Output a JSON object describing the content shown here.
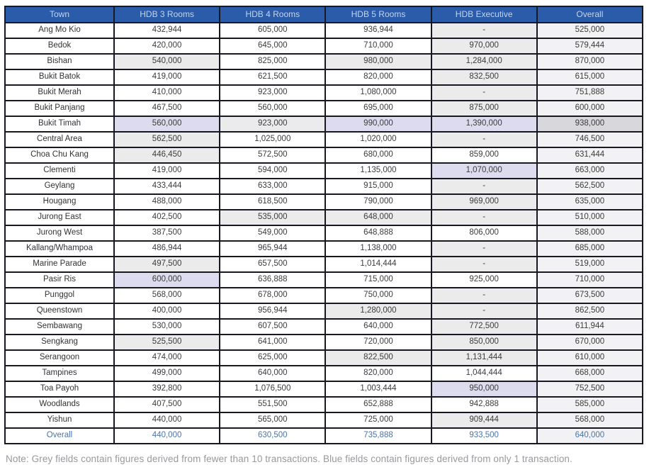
{
  "page": {
    "note": "Note: Grey fields contain figures derived from fewer than 10 transactions. Blue fields contain figures derived from only 1 transaction."
  },
  "colors": {
    "header_bg": "#2b5ca9",
    "header_text": "#c2d4ec",
    "grid_border": "#181821",
    "grey_field": "#ebebeb",
    "blue_field": "#dcdcee",
    "overall_column_tint": "#f2f2f4",
    "dark_grey_field": "#d8d8dc",
    "footer_text_blue": "#4a74a8",
    "note_text": "#97999d"
  },
  "style_legend": {
    "w": "white - 10 or more transactions",
    "g": "grey field - fewer than 10 transactions",
    "b": "blue field - only 1 transaction",
    "o": "overall column light tint",
    "og": "darker grey field in overall column"
  },
  "table": {
    "columns": [
      "Town",
      "HDB 3 Rooms",
      "HDB 4 Rooms",
      "HDB 5 Rooms",
      "HDB Executive",
      "Overall"
    ],
    "rows": [
      {
        "town": "Ang Mo Kio",
        "cells": [
          {
            "v": "432,944",
            "s": "w"
          },
          {
            "v": "605,000",
            "s": "w"
          },
          {
            "v": "936,944",
            "s": "w"
          },
          {
            "v": "-",
            "s": "g"
          },
          {
            "v": "525,000",
            "s": "o"
          }
        ]
      },
      {
        "town": "Bedok",
        "cells": [
          {
            "v": "420,000",
            "s": "w"
          },
          {
            "v": "645,000",
            "s": "w"
          },
          {
            "v": "710,000",
            "s": "w"
          },
          {
            "v": "970,000",
            "s": "g"
          },
          {
            "v": "579,444",
            "s": "o"
          }
        ]
      },
      {
        "town": "Bishan",
        "cells": [
          {
            "v": "540,000",
            "s": "g"
          },
          {
            "v": "825,000",
            "s": "w"
          },
          {
            "v": "980,000",
            "s": "g"
          },
          {
            "v": "1,284,000",
            "s": "g"
          },
          {
            "v": "870,000",
            "s": "o"
          }
        ]
      },
      {
        "town": "Bukit Batok",
        "cells": [
          {
            "v": "419,000",
            "s": "w"
          },
          {
            "v": "621,500",
            "s": "w"
          },
          {
            "v": "820,000",
            "s": "w"
          },
          {
            "v": "832,500",
            "s": "g"
          },
          {
            "v": "615,000",
            "s": "o"
          }
        ]
      },
      {
        "town": "Bukit Merah",
        "cells": [
          {
            "v": "410,000",
            "s": "w"
          },
          {
            "v": "923,000",
            "s": "w"
          },
          {
            "v": "1,080,000",
            "s": "w"
          },
          {
            "v": "-",
            "s": "g"
          },
          {
            "v": "751,888",
            "s": "o"
          }
        ]
      },
      {
        "town": "Bukit Panjang",
        "cells": [
          {
            "v": "467,500",
            "s": "w"
          },
          {
            "v": "560,000",
            "s": "w"
          },
          {
            "v": "695,000",
            "s": "w"
          },
          {
            "v": "875,000",
            "s": "g"
          },
          {
            "v": "600,000",
            "s": "o"
          }
        ]
      },
      {
        "town": "Bukit Timah",
        "cells": [
          {
            "v": "560,000",
            "s": "b"
          },
          {
            "v": "923,000",
            "s": "g"
          },
          {
            "v": "990,000",
            "s": "b"
          },
          {
            "v": "1,390,000",
            "s": "b"
          },
          {
            "v": "938,000",
            "s": "og"
          }
        ]
      },
      {
        "town": "Central Area",
        "cells": [
          {
            "v": "562,500",
            "s": "g"
          },
          {
            "v": "1,025,000",
            "s": "w"
          },
          {
            "v": "1,020,000",
            "s": "w"
          },
          {
            "v": "-",
            "s": "g"
          },
          {
            "v": "746,500",
            "s": "o"
          }
        ]
      },
      {
        "town": "Choa Chu Kang",
        "cells": [
          {
            "v": "446,450",
            "s": "g"
          },
          {
            "v": "572,500",
            "s": "w"
          },
          {
            "v": "680,000",
            "s": "w"
          },
          {
            "v": "859,000",
            "s": "w"
          },
          {
            "v": "631,444",
            "s": "o"
          }
        ]
      },
      {
        "town": "Clementi",
        "cells": [
          {
            "v": "419,000",
            "s": "w"
          },
          {
            "v": "594,000",
            "s": "w"
          },
          {
            "v": "1,135,000",
            "s": "w"
          },
          {
            "v": "1,070,000",
            "s": "b"
          },
          {
            "v": "663,000",
            "s": "o"
          }
        ]
      },
      {
        "town": "Geylang",
        "cells": [
          {
            "v": "433,444",
            "s": "w"
          },
          {
            "v": "633,000",
            "s": "w"
          },
          {
            "v": "915,000",
            "s": "w"
          },
          {
            "v": "-",
            "s": "g"
          },
          {
            "v": "562,500",
            "s": "o"
          }
        ]
      },
      {
        "town": "Hougang",
        "cells": [
          {
            "v": "488,000",
            "s": "w"
          },
          {
            "v": "618,500",
            "s": "w"
          },
          {
            "v": "790,000",
            "s": "w"
          },
          {
            "v": "969,000",
            "s": "g"
          },
          {
            "v": "635,000",
            "s": "o"
          }
        ]
      },
      {
        "town": "Jurong East",
        "cells": [
          {
            "v": "402,500",
            "s": "w"
          },
          {
            "v": "535,000",
            "s": "g"
          },
          {
            "v": "648,000",
            "s": "g"
          },
          {
            "v": "-",
            "s": "g"
          },
          {
            "v": "510,000",
            "s": "o"
          }
        ]
      },
      {
        "town": "Jurong West",
        "cells": [
          {
            "v": "387,500",
            "s": "w"
          },
          {
            "v": "549,000",
            "s": "w"
          },
          {
            "v": "648,888",
            "s": "w"
          },
          {
            "v": "806,000",
            "s": "w"
          },
          {
            "v": "588,000",
            "s": "o"
          }
        ]
      },
      {
        "town": "Kallang/Whampoa",
        "cells": [
          {
            "v": "486,944",
            "s": "w"
          },
          {
            "v": "965,944",
            "s": "w"
          },
          {
            "v": "1,138,000",
            "s": "w"
          },
          {
            "v": "-",
            "s": "g"
          },
          {
            "v": "685,000",
            "s": "o"
          }
        ]
      },
      {
        "town": "Marine Parade",
        "cells": [
          {
            "v": "497,500",
            "s": "g"
          },
          {
            "v": "657,500",
            "s": "w"
          },
          {
            "v": "1,014,444",
            "s": "w"
          },
          {
            "v": "-",
            "s": "g"
          },
          {
            "v": "519,000",
            "s": "o"
          }
        ]
      },
      {
        "town": "Pasir Ris",
        "cells": [
          {
            "v": "600,000",
            "s": "b"
          },
          {
            "v": "636,888",
            "s": "w"
          },
          {
            "v": "715,000",
            "s": "w"
          },
          {
            "v": "925,000",
            "s": "w"
          },
          {
            "v": "710,000",
            "s": "o"
          }
        ]
      },
      {
        "town": "Punggol",
        "cells": [
          {
            "v": "568,000",
            "s": "w"
          },
          {
            "v": "678,000",
            "s": "w"
          },
          {
            "v": "750,000",
            "s": "w"
          },
          {
            "v": "-",
            "s": "g"
          },
          {
            "v": "673,500",
            "s": "o"
          }
        ]
      },
      {
        "town": "Queenstown",
        "cells": [
          {
            "v": "400,000",
            "s": "w"
          },
          {
            "v": "956,944",
            "s": "w"
          },
          {
            "v": "1,280,000",
            "s": "g"
          },
          {
            "v": "-",
            "s": "g"
          },
          {
            "v": "862,500",
            "s": "o"
          }
        ]
      },
      {
        "town": "Sembawang",
        "cells": [
          {
            "v": "530,000",
            "s": "w"
          },
          {
            "v": "607,500",
            "s": "w"
          },
          {
            "v": "640,000",
            "s": "w"
          },
          {
            "v": "772,500",
            "s": "g"
          },
          {
            "v": "611,944",
            "s": "o"
          }
        ]
      },
      {
        "town": "Sengkang",
        "cells": [
          {
            "v": "525,500",
            "s": "g"
          },
          {
            "v": "641,000",
            "s": "w"
          },
          {
            "v": "720,000",
            "s": "w"
          },
          {
            "v": "850,000",
            "s": "g"
          },
          {
            "v": "670,000",
            "s": "o"
          }
        ]
      },
      {
        "town": "Serangoon",
        "cells": [
          {
            "v": "474,000",
            "s": "w"
          },
          {
            "v": "625,000",
            "s": "w"
          },
          {
            "v": "822,500",
            "s": "g"
          },
          {
            "v": "1,131,444",
            "s": "g"
          },
          {
            "v": "610,000",
            "s": "o"
          }
        ]
      },
      {
        "town": "Tampines",
        "cells": [
          {
            "v": "499,000",
            "s": "w"
          },
          {
            "v": "640,000",
            "s": "w"
          },
          {
            "v": "820,000",
            "s": "w"
          },
          {
            "v": "1,044,444",
            "s": "w"
          },
          {
            "v": "668,000",
            "s": "o"
          }
        ]
      },
      {
        "town": "Toa Payoh",
        "cells": [
          {
            "v": "392,800",
            "s": "w"
          },
          {
            "v": "1,076,500",
            "s": "w"
          },
          {
            "v": "1,003,444",
            "s": "w"
          },
          {
            "v": "950,000",
            "s": "b"
          },
          {
            "v": "752,500",
            "s": "o"
          }
        ]
      },
      {
        "town": "Woodlands",
        "cells": [
          {
            "v": "407,500",
            "s": "w"
          },
          {
            "v": "551,500",
            "s": "w"
          },
          {
            "v": "652,888",
            "s": "w"
          },
          {
            "v": "942,888",
            "s": "w"
          },
          {
            "v": "585,000",
            "s": "o"
          }
        ]
      },
      {
        "town": "Yishun",
        "cells": [
          {
            "v": "440,000",
            "s": "w"
          },
          {
            "v": "565,000",
            "s": "w"
          },
          {
            "v": "725,000",
            "s": "w"
          },
          {
            "v": "909,444",
            "s": "g"
          },
          {
            "v": "568,000",
            "s": "o"
          }
        ]
      }
    ],
    "footer": {
      "town": "Overall",
      "cells": [
        {
          "v": "440,000",
          "s": "w"
        },
        {
          "v": "630,500",
          "s": "w"
        },
        {
          "v": "735,888",
          "s": "w"
        },
        {
          "v": "933,500",
          "s": "w"
        },
        {
          "v": "640,000",
          "s": "o"
        }
      ]
    }
  }
}
